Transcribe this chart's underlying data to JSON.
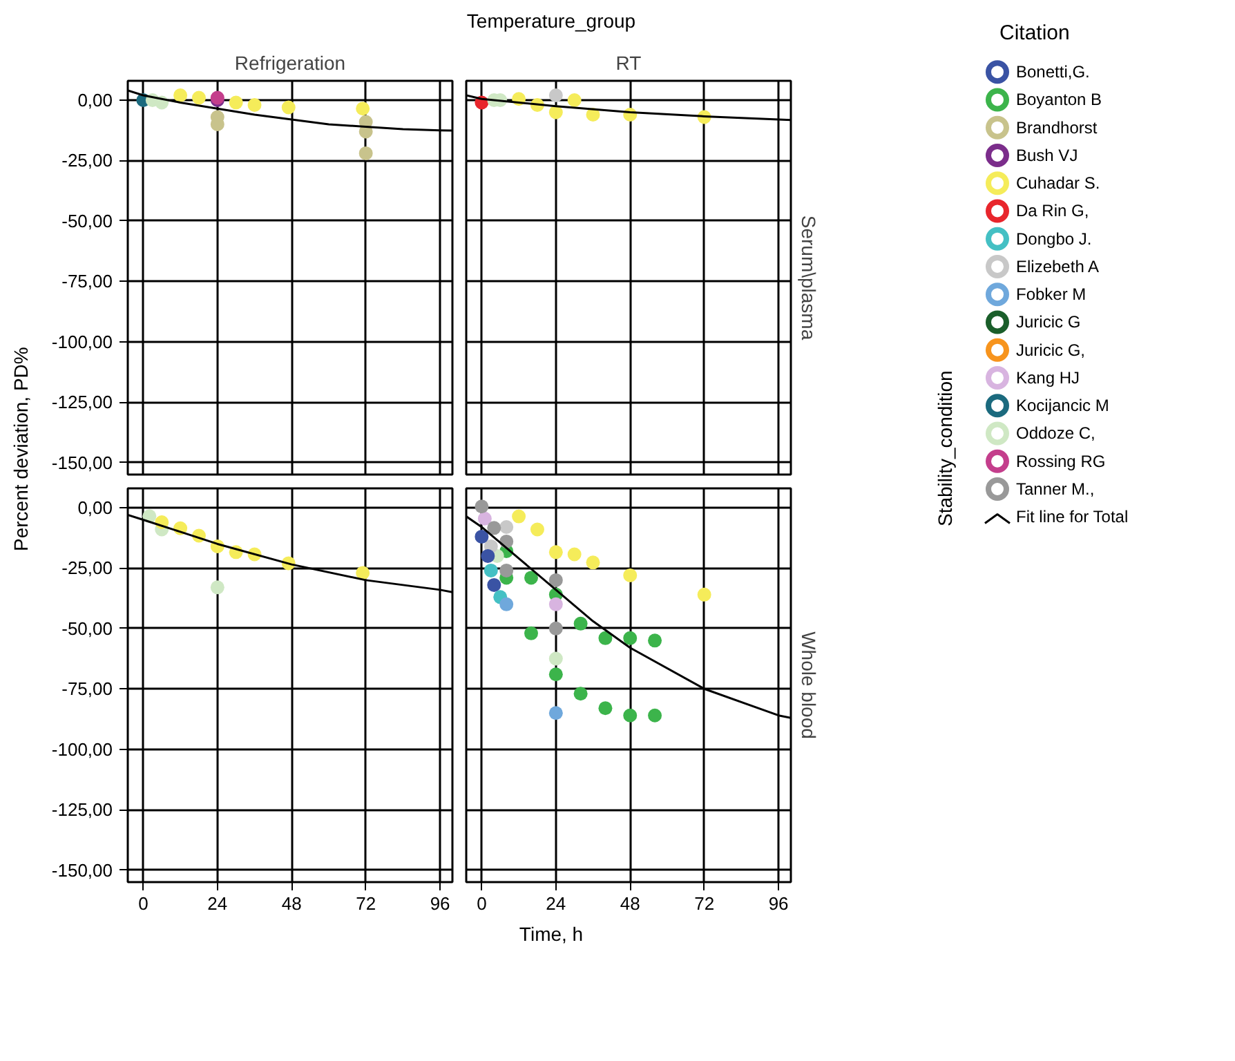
{
  "chart_data": [
    {
      "type": "scatter",
      "annotations": [
        "Temperature_group"
      ],
      "subtitle": "Refrigeration",
      "ylabel": "Percent deviation, PD%",
      "legend": "right",
      "legend_title": "Citation",
      "marker": "circle",
      "grid": true,
      "tick_labels": "y",
      "xlim": [
        -5,
        100
      ],
      "ylim": [
        -155,
        8
      ],
      "xticks": [
        0,
        24,
        48,
        72,
        96
      ],
      "yticks": [
        {
          "value": 0,
          "label": "0,00"
        },
        {
          "value": -25,
          "label": "-25,00"
        },
        {
          "value": -50,
          "label": "-50,00"
        },
        {
          "value": -75,
          "label": "-75,00"
        },
        {
          "value": -100,
          "label": "-100,00"
        },
        {
          "value": -125,
          "label": "-125,00"
        },
        {
          "value": -150,
          "label": "-150,00"
        }
      ],
      "series": [
        {
          "name": "Bonetti,G.",
          "color": "#3a53a4"
        },
        {
          "name": "Boyanton B",
          "color": "#3cb44b"
        },
        {
          "name": "Brandhorst",
          "color": "#c8c38c",
          "x": [
            24,
            24,
            72,
            72,
            72
          ],
          "values": [
            -7,
            -10,
            -9,
            -13,
            -22
          ]
        },
        {
          "name": "Bush VJ",
          "color": "#7b2d8b",
          "x": [
            24
          ],
          "values": [
            0
          ]
        },
        {
          "name": "Cuhadar S.",
          "color": "#f5ec5a",
          "x": [
            12,
            18,
            30,
            36,
            47,
            71
          ],
          "values": [
            2,
            1,
            -1,
            -2,
            -3,
            -3.5
          ]
        },
        {
          "name": "Da Rin G,",
          "color": "#e8262c"
        },
        {
          "name": "Dongbo J.",
          "color": "#44c0c4"
        },
        {
          "name": "Elizebeth A",
          "color": "#c8c8c8"
        },
        {
          "name": "Fobker M",
          "color": "#6fa8dc"
        },
        {
          "name": "Juricic G",
          "color": "#1a5e2a"
        },
        {
          "name": "Juricic G,",
          "color": "#f7941d"
        },
        {
          "name": "Kang HJ",
          "color": "#d8b4e0"
        },
        {
          "name": "Kocijancic M",
          "color": "#1b6a7e",
          "x": [
            0
          ],
          "values": [
            0
          ]
        },
        {
          "name": "Oddoze C,",
          "color": "#cfe8c4",
          "x": [
            3,
            6
          ],
          "values": [
            0,
            -1
          ]
        },
        {
          "name": "Rossing RG",
          "color": "#c43e8c",
          "x": [
            24
          ],
          "values": [
            1
          ]
        },
        {
          "name": "Tanner M.,",
          "color": "#999999"
        },
        {
          "name": "Fit line for Total",
          "type": "line",
          "marker": "none",
          "color": "#000000",
          "x": [
            -5,
            0,
            12,
            24,
            36,
            48,
            60,
            72,
            84,
            96,
            100
          ],
          "values": [
            4,
            2,
            -1,
            -3.5,
            -6,
            -8,
            -10,
            -11,
            -12,
            -12.5,
            -12.6
          ]
        }
      ]
    },
    {
      "type": "scatter",
      "subtitle": "RT",
      "y2label": "Serum\\plasma",
      "annotations": [
        "Stability_condition"
      ],
      "marker": "circle",
      "grid": true,
      "tick_labels": false,
      "xlim": [
        -5,
        100
      ],
      "ylim": [
        -155,
        8
      ],
      "xticks": [
        0,
        24,
        48,
        72,
        96
      ],
      "yticks": [
        0,
        -25,
        -50,
        -75,
        -100,
        -125,
        -150
      ],
      "series": [
        {
          "color": "#f5ec5a",
          "x": [
            12,
            18,
            24,
            30,
            36,
            48,
            72
          ],
          "values": [
            0.5,
            -2,
            -5,
            0,
            -6,
            -6,
            -7
          ]
        },
        {
          "color": "#e8262c",
          "x": [
            0
          ],
          "values": [
            -1
          ]
        },
        {
          "color": "#c8c8c8",
          "x": [
            24
          ],
          "values": [
            2
          ]
        },
        {
          "color": "#cfe8c4",
          "x": [
            4,
            6
          ],
          "values": [
            0,
            0
          ]
        },
        {
          "type": "line",
          "marker": "none",
          "color": "#000000",
          "x": [
            -5,
            0,
            24,
            48,
            72,
            96,
            100
          ],
          "values": [
            2,
            0.5,
            -2.5,
            -5,
            -6.7,
            -8,
            -8.2
          ]
        }
      ]
    },
    {
      "type": "scatter",
      "xlabel": "Time, h",
      "marker": "circle",
      "grid": true,
      "xlim": [
        -5,
        100
      ],
      "ylim": [
        -155,
        8
      ],
      "xticks": [
        0,
        24,
        48,
        72,
        96
      ],
      "yticks": [
        {
          "value": 0,
          "label": "0,00"
        },
        {
          "value": -25,
          "label": "-25,00"
        },
        {
          "value": -50,
          "label": "-50,00"
        },
        {
          "value": -75,
          "label": "-75,00"
        },
        {
          "value": -100,
          "label": "-100,00"
        },
        {
          "value": -125,
          "label": "-125,00"
        },
        {
          "value": -150,
          "label": "-150,00"
        }
      ],
      "series": [
        {
          "color": "#cfe8c4",
          "x": [
            2,
            6,
            24
          ],
          "values": [
            -3.5,
            -9,
            -33
          ]
        },
        {
          "color": "#f5ec5a",
          "x": [
            6,
            12,
            18,
            24,
            30,
            36,
            47,
            71
          ],
          "values": [
            -6,
            -8.5,
            -11.6,
            -16,
            -18.4,
            -19.3,
            -23,
            -27
          ]
        },
        {
          "type": "line",
          "marker": "none",
          "color": "#000000",
          "x": [
            -5,
            0,
            12,
            24,
            48,
            72,
            96,
            100
          ],
          "values": [
            -3,
            -5,
            -10,
            -15,
            -23.5,
            -30,
            -34,
            -35
          ]
        }
      ]
    },
    {
      "type": "scatter",
      "y2label": "Whole blood",
      "marker": "circle",
      "grid": true,
      "tick_labels": "x",
      "xlim": [
        -5,
        100
      ],
      "ylim": [
        -155,
        8
      ],
      "xticks": [
        0,
        24,
        48,
        72,
        96
      ],
      "yticks": [
        0,
        -25,
        -50,
        -75,
        -100,
        -125,
        -150
      ],
      "series": [
        {
          "color": "#3cb44b",
          "x": [
            8,
            8,
            16,
            16,
            24,
            24,
            32,
            32,
            40,
            40,
            48,
            48,
            56,
            56
          ],
          "values": [
            -18,
            -29,
            -29,
            -52,
            -36,
            -69,
            -48,
            -77,
            -54,
            -83,
            -54,
            -86,
            -55,
            -86
          ]
        },
        {
          "color": "#cfe8c4",
          "x": [
            5,
            24
          ],
          "values": [
            -20,
            -62.5
          ]
        },
        {
          "color": "#f5ec5a",
          "x": [
            12,
            18,
            24,
            30,
            36,
            48,
            72
          ],
          "values": [
            -3.6,
            -9,
            -18.4,
            -19.3,
            -22.7,
            -28,
            -36
          ]
        },
        {
          "color": "#c8c8c8",
          "x": [
            3,
            8
          ],
          "values": [
            -16,
            -8
          ]
        },
        {
          "color": "#d8b4e0",
          "x": [
            1,
            24
          ],
          "values": [
            -4.5,
            -40
          ]
        },
        {
          "color": "#3a53a4",
          "x": [
            0,
            2,
            4
          ],
          "values": [
            -12,
            -20,
            -32
          ]
        },
        {
          "color": "#44c0c4",
          "x": [
            3,
            6
          ],
          "values": [
            -26,
            -37
          ]
        },
        {
          "color": "#6fa8dc",
          "x": [
            8,
            24
          ],
          "values": [
            -40,
            -85
          ]
        },
        {
          "color": "#999999",
          "x": [
            0,
            4,
            8,
            8,
            24,
            24
          ],
          "values": [
            0.5,
            -8.4,
            -14,
            -26,
            -30,
            -50
          ]
        },
        {
          "type": "line",
          "marker": "none",
          "color": "#000000",
          "x": [
            -5,
            0,
            12,
            24,
            36,
            48,
            72,
            96,
            100
          ],
          "values": [
            -3.6,
            -8,
            -21,
            -34,
            -47,
            -58,
            -75,
            -86,
            -87
          ]
        }
      ]
    }
  ]
}
